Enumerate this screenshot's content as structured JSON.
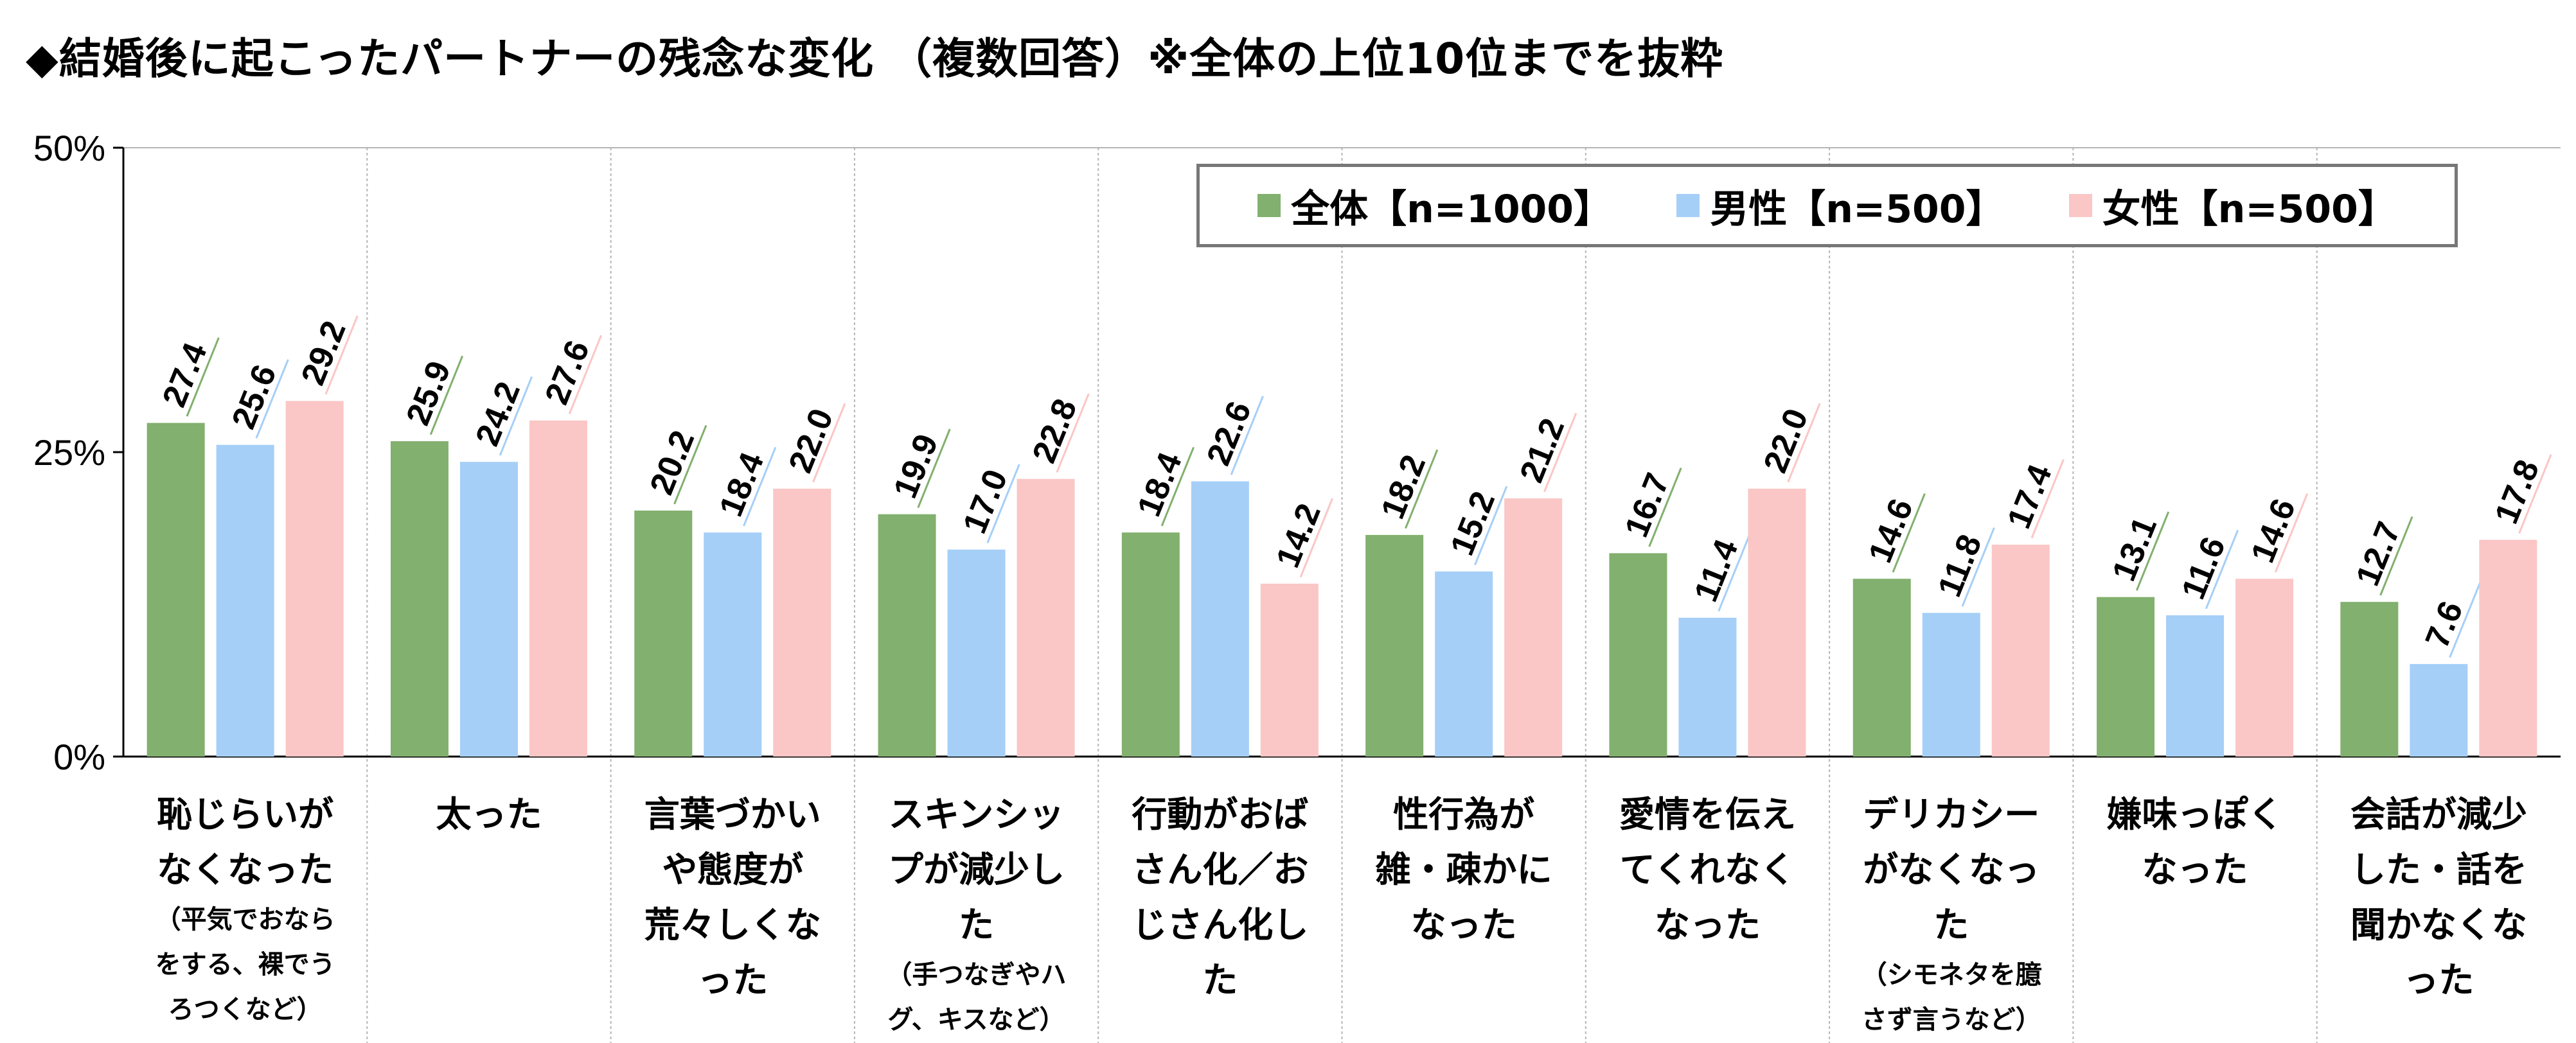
{
  "title": "◆結婚後に起こったパートナーの残念な変化 （複数回答）※全体の上位10位までを抜粋",
  "chart_data": {
    "type": "bar",
    "ylim": [
      0,
      50
    ],
    "y_ticks": [
      {
        "value": 0,
        "label": "0%"
      },
      {
        "value": 25,
        "label": "25%"
      },
      {
        "value": 50,
        "label": "50%"
      }
    ],
    "categories": [
      {
        "main": "恥じらいがなくなった",
        "sub": "（平気でおならをする、裸でうろつくなど）"
      },
      {
        "main": "太った",
        "sub": ""
      },
      {
        "main": "言葉づかいや態度が荒々しくなった",
        "sub": ""
      },
      {
        "main": "スキンシップが減少した",
        "sub": "（手つなぎやハグ、キスなど）"
      },
      {
        "main": "行動がおばさん化／おじさん化した",
        "sub": ""
      },
      {
        "main": "性行為が雑・疎かになった",
        "sub": ""
      },
      {
        "main": "愛情を伝えてくれなくなった",
        "sub": ""
      },
      {
        "main": "デリカシーがなくなった",
        "sub": "（シモネタを臆さず言うなど）"
      },
      {
        "main": "嫌味っぽくなった",
        "sub": ""
      },
      {
        "main": "会話が減少した・話を聞かなくなった",
        "sub": ""
      }
    ],
    "series": [
      {
        "name": "全体【n=1000】",
        "color": "#82b06e",
        "values": [
          27.4,
          25.9,
          20.2,
          19.9,
          18.4,
          18.2,
          16.7,
          14.6,
          13.1,
          12.7
        ],
        "labels": [
          "27.4",
          "25.9",
          "20.2",
          "19.9",
          "18.4",
          "18.2",
          "16.7",
          "14.6",
          "13.1",
          "12.7"
        ]
      },
      {
        "name": "男性【n=500】",
        "color": "#a6cff7",
        "values": [
          25.6,
          24.2,
          18.4,
          17.0,
          22.6,
          15.2,
          11.4,
          11.8,
          11.6,
          7.6
        ],
        "labels": [
          "25.6",
          "24.2",
          "18.4",
          "17.0",
          "22.6",
          "15.2",
          "11.4",
          "11.8",
          "11.6",
          "7.6"
        ]
      },
      {
        "name": "女性【n=500】",
        "color": "#fbc6c6",
        "values": [
          29.2,
          27.6,
          22.0,
          22.8,
          14.2,
          21.2,
          22.0,
          17.4,
          14.6,
          17.8
        ],
        "labels": [
          "29.2",
          "27.6",
          "22.0",
          "22.8",
          "14.2",
          "21.2",
          "22.0",
          "17.4",
          "14.6",
          "17.8"
        ]
      }
    ],
    "legend_position": "top-right",
    "grid": "vertical dotted separators between categories"
  }
}
